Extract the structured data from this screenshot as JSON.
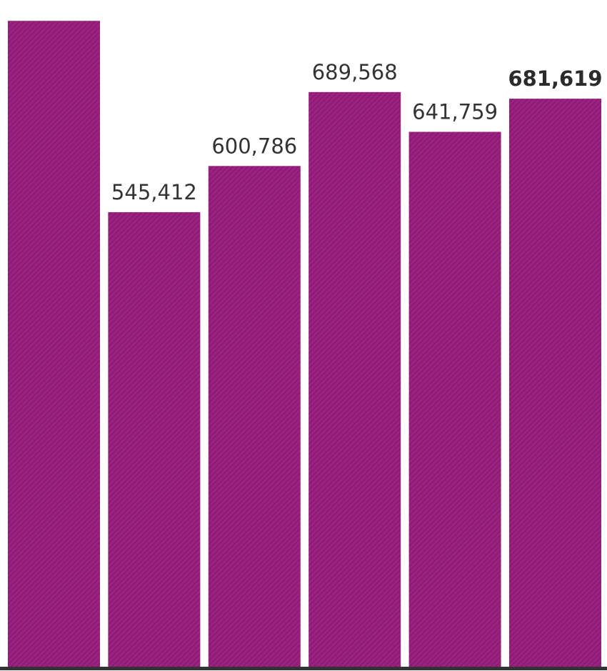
{
  "chart_data": {
    "type": "bar",
    "categories": [
      "",
      "",
      "",
      "",
      "",
      ""
    ],
    "values": [
      775000,
      545412,
      600786,
      689568,
      641759,
      681619
    ],
    "data_labels": [
      "",
      "545,412",
      "600,786",
      "689,568",
      "641,759",
      "681,619"
    ],
    "highlight_index": 5,
    "ylim": [
      0,
      800000
    ],
    "grid": false,
    "legend": "none",
    "title": "",
    "xlabel": "",
    "ylabel": "",
    "colors": {
      "bar": "#9b2180",
      "bar_hatch": "#7a1566",
      "baseline": "#333333",
      "label": "#333333"
    }
  }
}
